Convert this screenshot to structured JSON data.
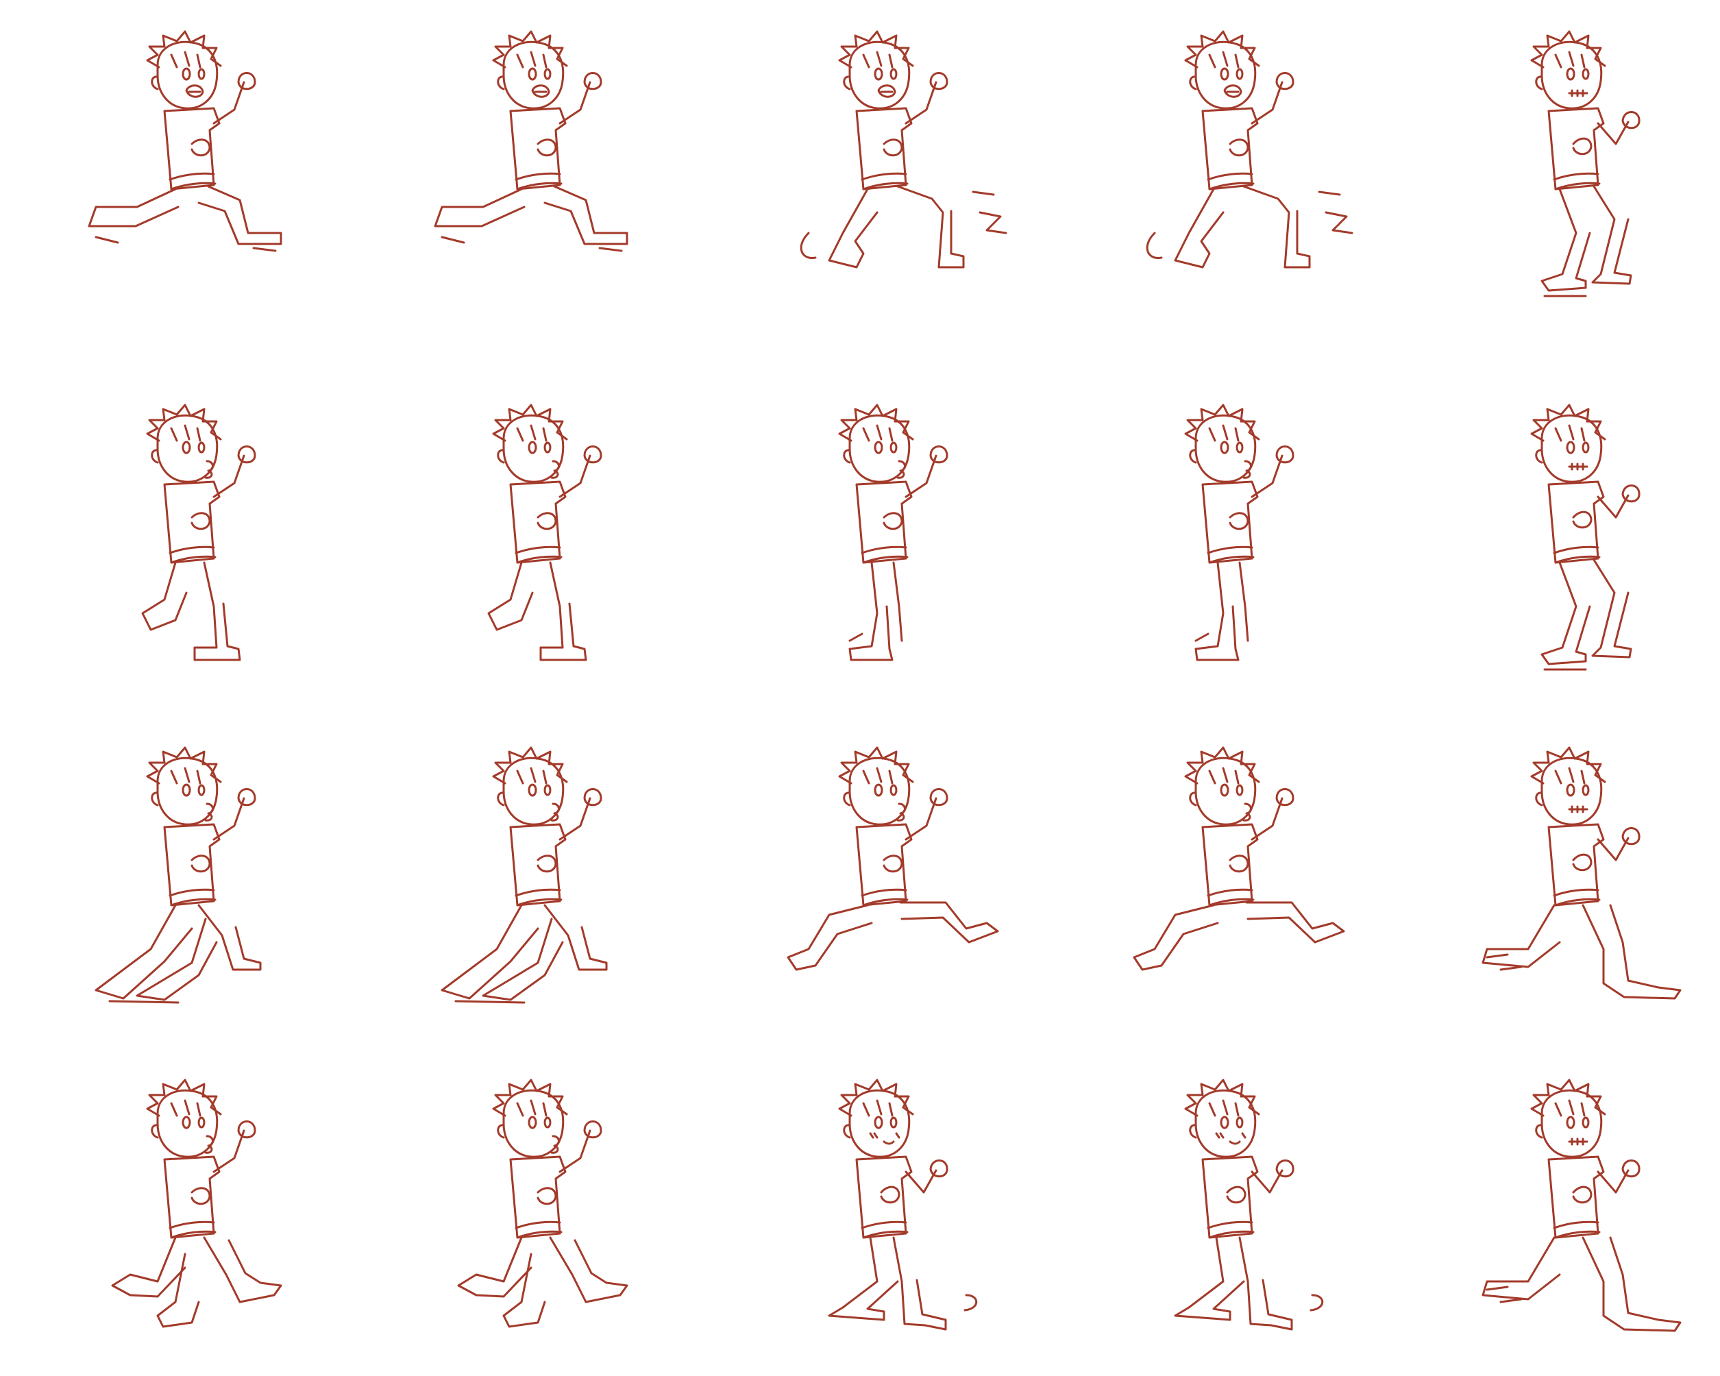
{
  "sprite_sheet": {
    "rows": 4,
    "cols": 5,
    "line_color": "#a33a2a",
    "background_color": "#ffffff",
    "frames": [
      {
        "pose": "run-wide-stride",
        "expression": "shout"
      },
      {
        "pose": "run-wide-stride",
        "expression": "shout"
      },
      {
        "pose": "skid-legs-scrambling",
        "expression": "shout"
      },
      {
        "pose": "skid-legs-scrambling",
        "expression": "shout"
      },
      {
        "pose": "crouch-brace",
        "expression": "grimace"
      },
      {
        "pose": "walk-forward",
        "expression": "pout"
      },
      {
        "pose": "walk-forward",
        "expression": "pout"
      },
      {
        "pose": "stand-hunched",
        "expression": "pout"
      },
      {
        "pose": "stand-hunched",
        "expression": "pout"
      },
      {
        "pose": "crouch-brace",
        "expression": "grimace"
      },
      {
        "pose": "lunge-back",
        "expression": "pout"
      },
      {
        "pose": "lunge-back",
        "expression": "pout"
      },
      {
        "pose": "run-leap",
        "expression": "pout"
      },
      {
        "pose": "run-leap",
        "expression": "pout"
      },
      {
        "pose": "kneel",
        "expression": "grimace"
      },
      {
        "pose": "stride-step",
        "expression": "pout"
      },
      {
        "pose": "stride-step",
        "expression": "pout"
      },
      {
        "pose": "hunched-step",
        "expression": "blush"
      },
      {
        "pose": "hunched-step",
        "expression": "blush"
      },
      {
        "pose": "kneel",
        "expression": "grimace"
      }
    ]
  }
}
